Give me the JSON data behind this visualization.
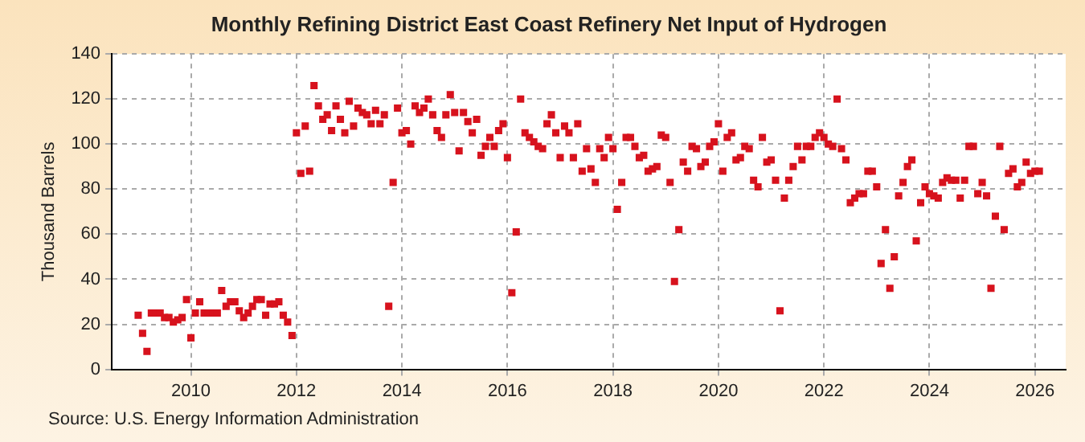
{
  "chart_data": {
    "type": "scatter",
    "title": "Monthly Refining District East Coast Refinery Net Input of Hydrogen",
    "ylabel": "Thousand Barrels",
    "annotations": [
      "Source: U.S. Energy Information Administration"
    ],
    "x": [
      "2009-01",
      "2009-02",
      "2009-03",
      "2009-04",
      "2009-05",
      "2009-06",
      "2009-07",
      "2009-08",
      "2009-09",
      "2009-10",
      "2009-11",
      "2009-12",
      "2010-01",
      "2010-02",
      "2010-03",
      "2010-04",
      "2010-05",
      "2010-06",
      "2010-07",
      "2010-08",
      "2010-09",
      "2010-10",
      "2010-11",
      "2010-12",
      "2011-01",
      "2011-02",
      "2011-03",
      "2011-04",
      "2011-05",
      "2011-06",
      "2011-07",
      "2011-08",
      "2011-09",
      "2011-10",
      "2011-11",
      "2011-12",
      "2012-01",
      "2012-02",
      "2012-03",
      "2012-04",
      "2012-05",
      "2012-06",
      "2012-07",
      "2012-08",
      "2012-09",
      "2012-10",
      "2012-11",
      "2012-12",
      "2013-01",
      "2013-02",
      "2013-03",
      "2013-04",
      "2013-05",
      "2013-06",
      "2013-07",
      "2013-08",
      "2013-09",
      "2013-10",
      "2013-11",
      "2013-12",
      "2014-01",
      "2014-02",
      "2014-03",
      "2014-04",
      "2014-05",
      "2014-06",
      "2014-07",
      "2014-08",
      "2014-09",
      "2014-10",
      "2014-11",
      "2014-12",
      "2015-01",
      "2015-02",
      "2015-03",
      "2015-04",
      "2015-05",
      "2015-06",
      "2015-07",
      "2015-08",
      "2015-09",
      "2015-10",
      "2015-11",
      "2015-12",
      "2016-01",
      "2016-02",
      "2016-03",
      "2016-04",
      "2016-05",
      "2016-06",
      "2016-07",
      "2016-08",
      "2016-09",
      "2016-10",
      "2016-11",
      "2016-12",
      "2017-01",
      "2017-02",
      "2017-03",
      "2017-04",
      "2017-05",
      "2017-06",
      "2017-07",
      "2017-08",
      "2017-09",
      "2017-10",
      "2017-11",
      "2017-12",
      "2018-01",
      "2018-02",
      "2018-03",
      "2018-04",
      "2018-05",
      "2018-06",
      "2018-07",
      "2018-08",
      "2018-09",
      "2018-10",
      "2018-11",
      "2018-12",
      "2019-01",
      "2019-02",
      "2019-03",
      "2019-04",
      "2019-05",
      "2019-06",
      "2019-07",
      "2019-08",
      "2019-09",
      "2019-10",
      "2019-11",
      "2019-12",
      "2020-01",
      "2020-02",
      "2020-03",
      "2020-04",
      "2020-05",
      "2020-06",
      "2020-07",
      "2020-08",
      "2020-09",
      "2020-10",
      "2020-11",
      "2020-12",
      "2021-01",
      "2021-02",
      "2021-03",
      "2021-04",
      "2021-05",
      "2021-06",
      "2021-07",
      "2021-08",
      "2021-09",
      "2021-10",
      "2021-11",
      "2021-12",
      "2022-01",
      "2022-02",
      "2022-03",
      "2022-04",
      "2022-05",
      "2022-06",
      "2022-07",
      "2022-08",
      "2022-09",
      "2022-10",
      "2022-11",
      "2022-12",
      "2023-01",
      "2023-02",
      "2023-03",
      "2023-04",
      "2023-05",
      "2023-06",
      "2023-07",
      "2023-08",
      "2023-09",
      "2023-10",
      "2023-11",
      "2023-12",
      "2024-01",
      "2024-02",
      "2024-03",
      "2024-04",
      "2024-05",
      "2024-06",
      "2024-07",
      "2024-08",
      "2024-09",
      "2024-10",
      "2024-11",
      "2024-12",
      "2025-01",
      "2025-02",
      "2025-03",
      "2025-04",
      "2025-05",
      "2025-06",
      "2025-07",
      "2025-08",
      "2025-09",
      "2025-10",
      "2025-11",
      "2025-12",
      "2026-01",
      "2026-02"
    ],
    "series": [
      {
        "color": "#d7121d",
        "values": [
          24,
          16,
          8,
          25,
          25,
          25,
          23,
          23,
          21,
          22,
          23,
          31,
          14,
          25,
          30,
          25,
          25,
          25,
          25,
          35,
          28,
          30,
          30,
          26,
          23,
          25,
          28,
          31,
          31,
          24,
          29,
          29,
          30,
          24,
          21,
          15,
          105,
          87,
          108,
          88,
          126,
          117,
          111,
          113,
          106,
          117,
          111,
          105,
          119,
          108,
          116,
          114,
          113,
          109,
          115,
          109,
          113,
          28,
          83,
          116,
          105,
          106,
          100,
          117,
          114,
          116,
          120,
          113,
          106,
          103,
          113,
          122,
          114,
          97,
          114,
          110,
          105,
          111,
          95,
          99,
          103,
          99,
          106,
          109,
          94,
          34,
          61,
          120,
          105,
          103,
          101,
          99,
          98,
          109,
          113,
          105,
          94,
          108,
          105,
          94,
          109,
          88,
          98,
          89,
          83,
          98,
          94,
          103,
          98,
          71,
          83,
          103,
          103,
          99,
          94,
          95,
          88,
          89,
          90,
          104,
          103,
          83,
          39,
          62,
          92,
          88,
          99,
          98,
          90,
          92,
          99,
          101,
          109,
          88,
          103,
          105,
          93,
          94,
          99,
          98,
          84,
          81,
          103,
          92,
          93,
          84,
          26,
          76,
          84,
          90,
          99,
          93,
          99,
          99,
          103,
          105,
          103,
          100,
          99,
          120,
          98,
          93,
          74,
          76,
          78,
          78,
          88,
          88,
          81,
          47,
          62,
          36,
          50,
          77,
          83,
          90,
          93,
          57,
          74,
          81,
          78,
          77,
          76,
          83,
          85,
          84,
          84,
          76,
          84,
          99,
          99,
          78,
          83,
          77,
          36,
          68,
          99,
          62,
          87,
          89,
          81,
          83,
          92,
          87,
          88,
          88
        ]
      }
    ],
    "xlim": [
      "2008-07",
      "2026-08"
    ],
    "xticks": [
      "2010",
      "2012",
      "2014",
      "2016",
      "2018",
      "2020",
      "2022",
      "2024",
      "2026"
    ],
    "ylim": [
      0,
      140
    ],
    "yticks": [
      0,
      20,
      40,
      60,
      80,
      100,
      120,
      140
    ],
    "grid": true,
    "marker": "square"
  }
}
